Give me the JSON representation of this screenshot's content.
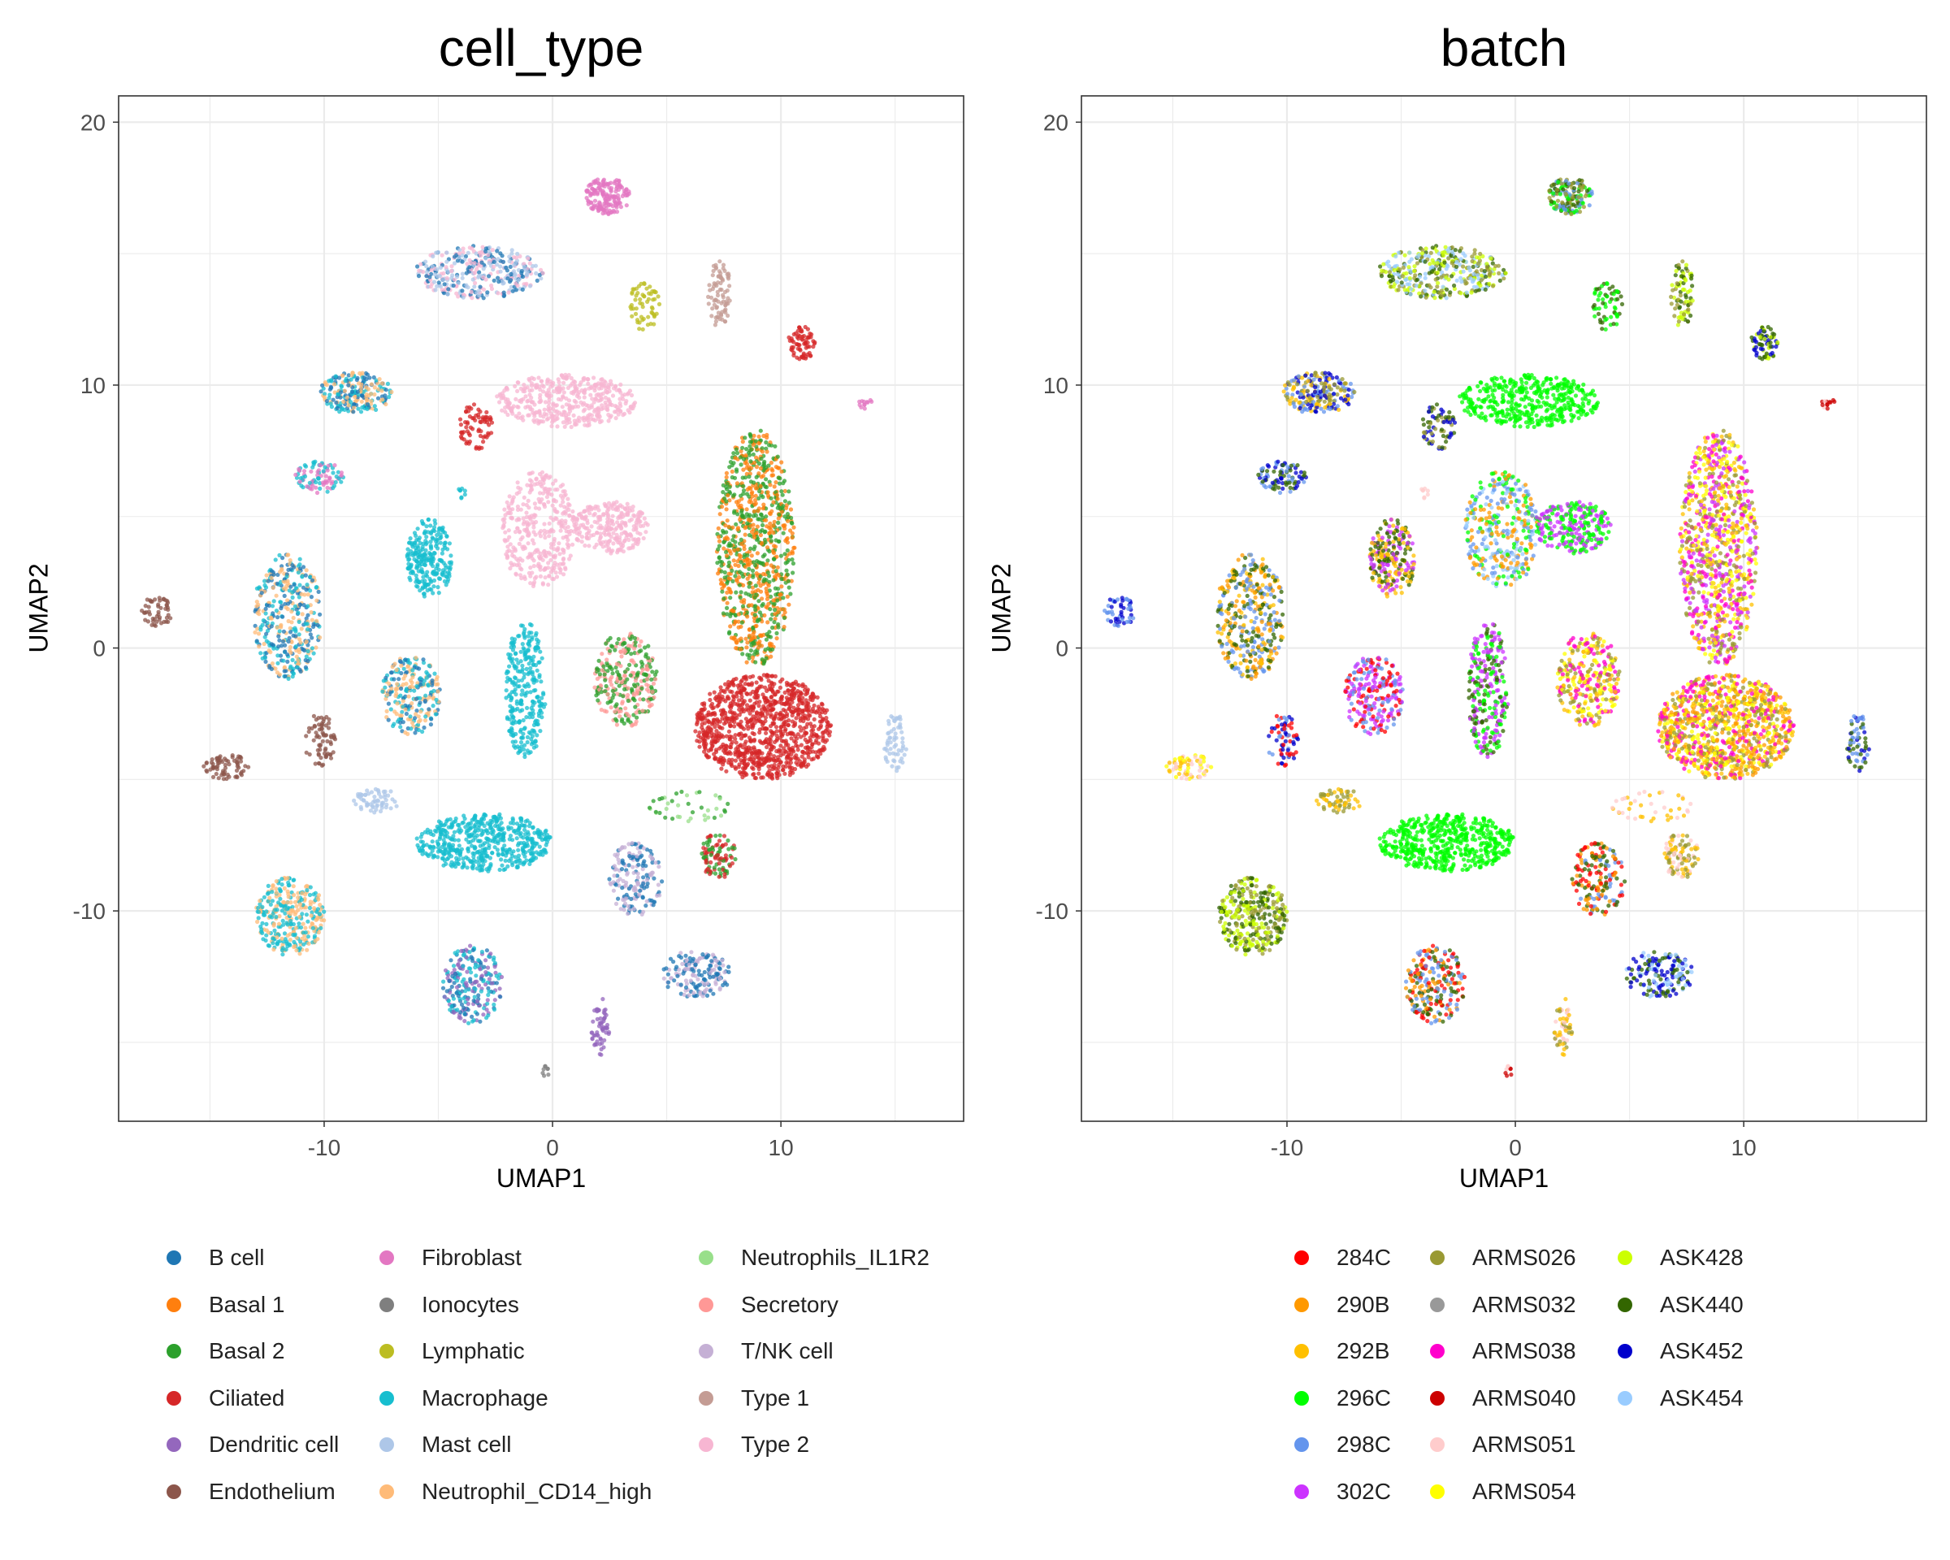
{
  "chart_data": [
    {
      "type": "scatter",
      "title": "cell_type",
      "xlabel": "UMAP1",
      "ylabel": "UMAP2",
      "xlim": [
        -19,
        18
      ],
      "ylim": [
        -18,
        21
      ],
      "xticks": [
        -10,
        0,
        10
      ],
      "yticks": [
        -10,
        0,
        10,
        20
      ],
      "grid": true,
      "legend_position": "bottom",
      "legend": [
        {
          "label": "B cell",
          "color": "#1f77b4"
        },
        {
          "label": "Basal 1",
          "color": "#ff7f0e"
        },
        {
          "label": "Basal 2",
          "color": "#2ca02c"
        },
        {
          "label": "Ciliated",
          "color": "#d62728"
        },
        {
          "label": "Dendritic cell",
          "color": "#9467bd"
        },
        {
          "label": "Endothelium",
          "color": "#8c564b"
        },
        {
          "label": "Fibroblast",
          "color": "#e377c2"
        },
        {
          "label": "Ionocytes",
          "color": "#7f7f7f"
        },
        {
          "label": "Lymphatic",
          "color": "#bcbd22"
        },
        {
          "label": "Macrophage",
          "color": "#17becf"
        },
        {
          "label": "Mast cell",
          "color": "#aec7e8"
        },
        {
          "label": "Neutrophil_CD14_high",
          "color": "#ffbb78"
        },
        {
          "label": "Neutrophils_IL1R2",
          "color": "#98df8a"
        },
        {
          "label": "Secretory",
          "color": "#ff9896"
        },
        {
          "label": "T/NK cell",
          "color": "#c5b0d5"
        },
        {
          "label": "Type 1",
          "color": "#c49c94"
        },
        {
          "label": "Type 2",
          "color": "#f7b6d2"
        }
      ],
      "clusters": [
        {
          "x": 2.4,
          "y": 17.2,
          "rx": 1.0,
          "ry": 0.7,
          "n": 160,
          "colors": [
            "#e377c2"
          ]
        },
        {
          "x": -3.2,
          "y": 14.3,
          "rx": 2.8,
          "ry": 1.0,
          "n": 360,
          "colors": [
            "#f7b6d2",
            "#1f77b4",
            "#aec7e8"
          ]
        },
        {
          "x": 4.0,
          "y": 13.0,
          "rx": 0.7,
          "ry": 0.9,
          "n": 60,
          "colors": [
            "#bcbd22"
          ]
        },
        {
          "x": 7.3,
          "y": 13.5,
          "rx": 0.5,
          "ry": 1.3,
          "n": 80,
          "colors": [
            "#c49c94"
          ]
        },
        {
          "x": 10.9,
          "y": 11.6,
          "rx": 0.6,
          "ry": 0.7,
          "n": 70,
          "colors": [
            "#d62728"
          ]
        },
        {
          "x": 13.7,
          "y": 9.3,
          "rx": 0.3,
          "ry": 0.2,
          "n": 12,
          "colors": [
            "#e377c2"
          ]
        },
        {
          "x": -8.6,
          "y": 9.7,
          "rx": 1.6,
          "ry": 0.8,
          "n": 220,
          "colors": [
            "#17becf",
            "#1f77b4",
            "#ffbb78"
          ]
        },
        {
          "x": -3.4,
          "y": 8.4,
          "rx": 0.8,
          "ry": 0.9,
          "n": 70,
          "colors": [
            "#d62728"
          ]
        },
        {
          "x": 0.6,
          "y": 9.4,
          "rx": 3.1,
          "ry": 1.0,
          "n": 420,
          "colors": [
            "#f7b6d2"
          ]
        },
        {
          "x": 8.9,
          "y": 3.8,
          "rx": 1.7,
          "ry": 4.5,
          "n": 900,
          "colors": [
            "#2ca02c",
            "#ff7f0e"
          ]
        },
        {
          "x": -10.2,
          "y": 6.5,
          "rx": 1.1,
          "ry": 0.6,
          "n": 90,
          "colors": [
            "#e377c2",
            "#17becf"
          ]
        },
        {
          "x": -4.0,
          "y": 5.9,
          "rx": 0.2,
          "ry": 0.2,
          "n": 8,
          "colors": [
            "#17becf"
          ]
        },
        {
          "x": -5.4,
          "y": 3.4,
          "rx": 1.0,
          "ry": 1.5,
          "n": 240,
          "colors": [
            "#17becf"
          ]
        },
        {
          "x": -0.6,
          "y": 4.5,
          "rx": 1.7,
          "ry": 2.2,
          "n": 360,
          "colors": [
            "#f7b6d2"
          ]
        },
        {
          "x": 2.5,
          "y": 4.6,
          "rx": 1.7,
          "ry": 1.0,
          "n": 260,
          "colors": [
            "#f7b6d2"
          ]
        },
        {
          "x": -11.6,
          "y": 1.2,
          "rx": 1.5,
          "ry": 2.4,
          "n": 380,
          "colors": [
            "#17becf",
            "#ffbb78",
            "#1f77b4"
          ]
        },
        {
          "x": -17.3,
          "y": 1.4,
          "rx": 0.7,
          "ry": 0.6,
          "n": 50,
          "colors": [
            "#8c564b"
          ]
        },
        {
          "x": -6.2,
          "y": -1.8,
          "rx": 1.3,
          "ry": 1.5,
          "n": 240,
          "colors": [
            "#ffbb78",
            "#17becf",
            "#1f77b4"
          ]
        },
        {
          "x": -1.2,
          "y": -1.6,
          "rx": 0.9,
          "ry": 2.6,
          "n": 280,
          "colors": [
            "#17becf"
          ]
        },
        {
          "x": 3.2,
          "y": -1.2,
          "rx": 1.4,
          "ry": 1.8,
          "n": 300,
          "colors": [
            "#ff9896",
            "#2ca02c"
          ]
        },
        {
          "x": 9.2,
          "y": -3.0,
          "rx": 3.0,
          "ry": 2.0,
          "n": 1000,
          "colors": [
            "#d62728"
          ]
        },
        {
          "x": -14.3,
          "y": -4.5,
          "rx": 1.0,
          "ry": 0.5,
          "n": 70,
          "colors": [
            "#8c564b"
          ]
        },
        {
          "x": -10.2,
          "y": -3.5,
          "rx": 0.7,
          "ry": 1.0,
          "n": 70,
          "colors": [
            "#8c564b"
          ]
        },
        {
          "x": 15.0,
          "y": -3.6,
          "rx": 0.5,
          "ry": 1.1,
          "n": 60,
          "colors": [
            "#aec7e8"
          ]
        },
        {
          "x": -7.7,
          "y": -5.8,
          "rx": 1.0,
          "ry": 0.5,
          "n": 60,
          "colors": [
            "#aec7e8"
          ]
        },
        {
          "x": -3.0,
          "y": -7.4,
          "rx": 3.0,
          "ry": 1.1,
          "n": 520,
          "colors": [
            "#17becf"
          ]
        },
        {
          "x": 3.6,
          "y": -8.8,
          "rx": 1.2,
          "ry": 1.4,
          "n": 170,
          "colors": [
            "#c5b0d5",
            "#1f77b4"
          ]
        },
        {
          "x": 7.3,
          "y": -7.9,
          "rx": 0.8,
          "ry": 0.9,
          "n": 100,
          "colors": [
            "#2ca02c",
            "#d62728"
          ]
        },
        {
          "x": 6.0,
          "y": -6.0,
          "rx": 1.8,
          "ry": 0.6,
          "n": 40,
          "colors": [
            "#2ca02c",
            "#98df8a"
          ]
        },
        {
          "x": -11.5,
          "y": -10.2,
          "rx": 1.5,
          "ry": 1.5,
          "n": 320,
          "colors": [
            "#17becf",
            "#ffbb78"
          ]
        },
        {
          "x": -3.5,
          "y": -12.8,
          "rx": 1.3,
          "ry": 1.5,
          "n": 230,
          "colors": [
            "#9467bd",
            "#1f77b4",
            "#17becf"
          ]
        },
        {
          "x": 6.3,
          "y": -12.4,
          "rx": 1.5,
          "ry": 0.9,
          "n": 170,
          "colors": [
            "#c5b0d5",
            "#1f77b4"
          ]
        },
        {
          "x": 2.1,
          "y": -14.4,
          "rx": 0.4,
          "ry": 1.1,
          "n": 60,
          "colors": [
            "#9467bd"
          ]
        },
        {
          "x": -0.3,
          "y": -16.1,
          "rx": 0.2,
          "ry": 0.2,
          "n": 8,
          "colors": [
            "#7f7f7f"
          ]
        }
      ]
    },
    {
      "type": "scatter",
      "title": "batch",
      "xlabel": "UMAP1",
      "ylabel": "UMAP2",
      "xlim": [
        -19,
        18
      ],
      "ylim": [
        -18,
        21
      ],
      "xticks": [
        -10,
        0,
        10
      ],
      "yticks": [
        -10,
        0,
        10,
        20
      ],
      "grid": true,
      "legend_position": "bottom",
      "legend": [
        {
          "label": "284C",
          "color": "#ff0000"
        },
        {
          "label": "290B",
          "color": "#ff9900"
        },
        {
          "label": "292B",
          "color": "#ffc000"
        },
        {
          "label": "296C",
          "color": "#00ff00"
        },
        {
          "label": "298C",
          "color": "#6495ed"
        },
        {
          "label": "302C",
          "color": "#cc33ff"
        },
        {
          "label": "ARMS026",
          "color": "#999933"
        },
        {
          "label": "ARMS032",
          "color": "#999999"
        },
        {
          "label": "ARMS038",
          "color": "#ff00cc"
        },
        {
          "label": "ARMS040",
          "color": "#cc0000"
        },
        {
          "label": "ARMS051",
          "color": "#ffcccc"
        },
        {
          "label": "ARMS054",
          "color": "#ffff00"
        },
        {
          "label": "ASK428",
          "color": "#ccff00"
        },
        {
          "label": "ASK440",
          "color": "#336600"
        },
        {
          "label": "ASK452",
          "color": "#0000cc"
        },
        {
          "label": "ASK454",
          "color": "#99ccff"
        }
      ],
      "clusters": [
        {
          "x": 2.4,
          "y": 17.2,
          "rx": 1.0,
          "ry": 0.7,
          "n": 160,
          "colors": [
            "#00ff00",
            "#6495ed",
            "#999933",
            "#336600"
          ]
        },
        {
          "x": -3.2,
          "y": 14.3,
          "rx": 2.8,
          "ry": 1.0,
          "n": 360,
          "colors": [
            "#ccff00",
            "#336600",
            "#99ccff",
            "#999933"
          ]
        },
        {
          "x": 4.0,
          "y": 13.0,
          "rx": 0.7,
          "ry": 0.9,
          "n": 60,
          "colors": [
            "#00ff00",
            "#336600"
          ]
        },
        {
          "x": 7.3,
          "y": 13.5,
          "rx": 0.5,
          "ry": 1.3,
          "n": 80,
          "colors": [
            "#ccff00",
            "#336600",
            "#999933"
          ]
        },
        {
          "x": 10.9,
          "y": 11.6,
          "rx": 0.6,
          "ry": 0.7,
          "n": 70,
          "colors": [
            "#ccff00",
            "#336600",
            "#0000cc"
          ]
        },
        {
          "x": 13.7,
          "y": 9.3,
          "rx": 0.3,
          "ry": 0.2,
          "n": 12,
          "colors": [
            "#ffcccc",
            "#cc0000"
          ]
        },
        {
          "x": -8.6,
          "y": 9.7,
          "rx": 1.6,
          "ry": 0.8,
          "n": 220,
          "colors": [
            "#6495ed",
            "#ffc000",
            "#0000cc",
            "#999933"
          ]
        },
        {
          "x": -3.4,
          "y": 8.4,
          "rx": 0.8,
          "ry": 0.9,
          "n": 70,
          "colors": [
            "#336600",
            "#0000cc",
            "#999933"
          ]
        },
        {
          "x": 0.6,
          "y": 9.4,
          "rx": 3.1,
          "ry": 1.0,
          "n": 420,
          "colors": [
            "#00ff00"
          ]
        },
        {
          "x": 8.9,
          "y": 3.8,
          "rx": 1.7,
          "ry": 4.5,
          "n": 900,
          "colors": [
            "#ff00cc",
            "#ffff00",
            "#999933",
            "#ffc000",
            "#cc33ff"
          ]
        },
        {
          "x": -10.2,
          "y": 6.5,
          "rx": 1.1,
          "ry": 0.6,
          "n": 90,
          "colors": [
            "#336600",
            "#6495ed",
            "#0000cc"
          ]
        },
        {
          "x": -4.0,
          "y": 5.9,
          "rx": 0.2,
          "ry": 0.2,
          "n": 8,
          "colors": [
            "#ffcccc"
          ]
        },
        {
          "x": -5.4,
          "y": 3.4,
          "rx": 1.0,
          "ry": 1.5,
          "n": 240,
          "colors": [
            "#cc33ff",
            "#ffc000",
            "#336600"
          ]
        },
        {
          "x": -0.6,
          "y": 4.5,
          "rx": 1.7,
          "ry": 2.2,
          "n": 360,
          "colors": [
            "#00ff00",
            "#99ccff",
            "#ff9900",
            "#6495ed"
          ]
        },
        {
          "x": 2.5,
          "y": 4.6,
          "rx": 1.7,
          "ry": 1.0,
          "n": 260,
          "colors": [
            "#cc33ff",
            "#00ff00"
          ]
        },
        {
          "x": -11.6,
          "y": 1.2,
          "rx": 1.5,
          "ry": 2.4,
          "n": 380,
          "colors": [
            "#ff9900",
            "#ffc000",
            "#6495ed",
            "#336600"
          ]
        },
        {
          "x": -17.3,
          "y": 1.4,
          "rx": 0.7,
          "ry": 0.6,
          "n": 50,
          "colors": [
            "#0000cc",
            "#6495ed"
          ]
        },
        {
          "x": -6.2,
          "y": -1.8,
          "rx": 1.3,
          "ry": 1.5,
          "n": 240,
          "colors": [
            "#cc33ff",
            "#ff0000",
            "#6495ed"
          ]
        },
        {
          "x": -1.2,
          "y": -1.6,
          "rx": 0.9,
          "ry": 2.6,
          "n": 280,
          "colors": [
            "#cc33ff",
            "#336600",
            "#00ff00"
          ]
        },
        {
          "x": 3.2,
          "y": -1.2,
          "rx": 1.4,
          "ry": 1.8,
          "n": 300,
          "colors": [
            "#ffff00",
            "#ffc000",
            "#ff00cc",
            "#999933"
          ]
        },
        {
          "x": 9.2,
          "y": -3.0,
          "rx": 3.0,
          "ry": 2.0,
          "n": 1000,
          "colors": [
            "#ffc000",
            "#ff00cc",
            "#999933",
            "#ffff00",
            "#ff9900"
          ]
        },
        {
          "x": -14.3,
          "y": -4.5,
          "rx": 1.0,
          "ry": 0.5,
          "n": 70,
          "colors": [
            "#ffff00",
            "#ffcccc",
            "#ffc000"
          ]
        },
        {
          "x": -10.2,
          "y": -3.5,
          "rx": 0.7,
          "ry": 1.0,
          "n": 70,
          "colors": [
            "#ff0000",
            "#0000cc",
            "#6495ed"
          ]
        },
        {
          "x": 15.0,
          "y": -3.6,
          "rx": 0.5,
          "ry": 1.1,
          "n": 60,
          "colors": [
            "#0000cc",
            "#6495ed",
            "#336600"
          ]
        },
        {
          "x": -7.7,
          "y": -5.8,
          "rx": 1.0,
          "ry": 0.5,
          "n": 60,
          "colors": [
            "#ffc000",
            "#999933"
          ]
        },
        {
          "x": -3.0,
          "y": -7.4,
          "rx": 3.0,
          "ry": 1.1,
          "n": 520,
          "colors": [
            "#00ff00"
          ]
        },
        {
          "x": 3.6,
          "y": -8.8,
          "rx": 1.2,
          "ry": 1.4,
          "n": 170,
          "colors": [
            "#ff9900",
            "#ff0000",
            "#336600",
            "#6495ed"
          ]
        },
        {
          "x": 7.3,
          "y": -7.9,
          "rx": 0.8,
          "ry": 0.9,
          "n": 100,
          "colors": [
            "#ffc000",
            "#ffcccc",
            "#999933"
          ]
        },
        {
          "x": 6.0,
          "y": -6.0,
          "rx": 1.8,
          "ry": 0.6,
          "n": 40,
          "colors": [
            "#ffcccc",
            "#ffc000"
          ]
        },
        {
          "x": -11.5,
          "y": -10.2,
          "rx": 1.5,
          "ry": 1.5,
          "n": 320,
          "colors": [
            "#ccff00",
            "#336600",
            "#999933"
          ]
        },
        {
          "x": -3.5,
          "y": -12.8,
          "rx": 1.3,
          "ry": 1.5,
          "n": 230,
          "colors": [
            "#ff0000",
            "#ff9900",
            "#336600",
            "#6495ed"
          ]
        },
        {
          "x": 6.3,
          "y": -12.4,
          "rx": 1.5,
          "ry": 0.9,
          "n": 170,
          "colors": [
            "#336600",
            "#99ccff",
            "#0000cc"
          ]
        },
        {
          "x": 2.1,
          "y": -14.4,
          "rx": 0.4,
          "ry": 1.1,
          "n": 60,
          "colors": [
            "#ffcccc",
            "#ffc000",
            "#999933"
          ]
        },
        {
          "x": -0.3,
          "y": -16.1,
          "rx": 0.2,
          "ry": 0.2,
          "n": 8,
          "colors": [
            "#ffcccc",
            "#cc0000"
          ]
        }
      ]
    }
  ]
}
